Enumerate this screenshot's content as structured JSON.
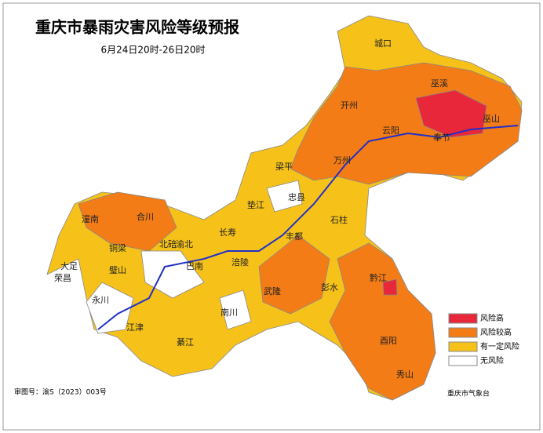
{
  "header": {
    "title": "重庆市暴雨灾害风险等级预报",
    "subtitle": "6月24日20时-26日20时"
  },
  "map": {
    "labels": [
      "城口",
      "巫溪",
      "开州",
      "云阳",
      "奉节",
      "巫山",
      "万州",
      "梁平",
      "忠县",
      "垫江",
      "石柱",
      "长寿",
      "丰都",
      "涪陵",
      "潼南",
      "合川",
      "北碚",
      "渝北",
      "铜梁",
      "大足",
      "荣昌",
      "璧山",
      "永川",
      "江津",
      "巴南",
      "南川",
      "綦江",
      "武隆",
      "彭水",
      "黔江",
      "酉阳",
      "秀山"
    ]
  },
  "legend": {
    "items": [
      "风险高",
      "风险较高",
      "有一定风险",
      "无风险"
    ]
  },
  "footer": {
    "map_number": "审图号：渝S（2023）003号",
    "agency": "重庆市气象台"
  }
}
